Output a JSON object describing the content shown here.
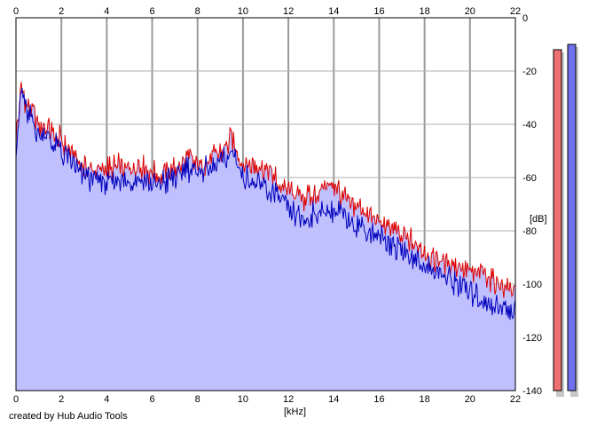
{
  "footer": {
    "credit": "created by Hub Audio Tools"
  },
  "chart_data": {
    "type": "area",
    "title": "",
    "xlabel": "[kHz]",
    "ylabel": "[dB]",
    "x_ticks": [
      "0",
      "2",
      "4",
      "6",
      "8",
      "10",
      "12",
      "14",
      "16",
      "18",
      "20",
      "22"
    ],
    "y_ticks": [
      "0",
      "-20",
      "-40",
      "-60",
      "-80",
      "-100",
      "-120",
      "-140"
    ],
    "xlim": [
      0,
      22
    ],
    "ylim": [
      -140,
      0
    ],
    "grid": true,
    "x_axis_position": "top-and-bottom",
    "y_axis_position": "right",
    "fill_color": "#c0c0ff",
    "series": [
      {
        "color": "#dd0000",
        "x": [
          0,
          0.25,
          0.5,
          1,
          1.5,
          2,
          2.5,
          3,
          3.5,
          4,
          4.5,
          5,
          5.5,
          6,
          6.5,
          7,
          7.5,
          8,
          8.5,
          9,
          9.5,
          10,
          10.5,
          11,
          11.5,
          12,
          12.5,
          13,
          13.5,
          14,
          14.5,
          15,
          15.5,
          16,
          16.5,
          17,
          17.5,
          18,
          18.5,
          19,
          19.5,
          20,
          20.5,
          21,
          21.5,
          22
        ],
        "y": [
          -45,
          -26,
          -33,
          -40,
          -42,
          -46,
          -51,
          -56,
          -57,
          -57,
          -56,
          -57,
          -55,
          -59,
          -58,
          -57,
          -53,
          -55,
          -53,
          -51,
          -46,
          -55,
          -56,
          -57,
          -61,
          -65,
          -68,
          -67,
          -64,
          -63,
          -68,
          -71,
          -74,
          -77,
          -79,
          -82,
          -84,
          -87,
          -91,
          -93,
          -93,
          -96,
          -96,
          -99,
          -101,
          -103
        ]
      },
      {
        "color": "#0000bb",
        "x": [
          0,
          0.25,
          0.5,
          1,
          1.5,
          2,
          2.5,
          3,
          3.5,
          4,
          4.5,
          5,
          5.5,
          6,
          6.5,
          7,
          7.5,
          8,
          8.5,
          9,
          9.5,
          10,
          10.5,
          11,
          11.5,
          12,
          12.5,
          13,
          13.5,
          14,
          14.5,
          15,
          15.5,
          16,
          16.5,
          17,
          17.5,
          18,
          18.5,
          19,
          19.5,
          20,
          20.5,
          21,
          21.5,
          22
        ],
        "y": [
          -47,
          -27,
          -36,
          -43,
          -46,
          -50,
          -55,
          -60,
          -61,
          -62,
          -61,
          -62,
          -60,
          -63,
          -62,
          -60,
          -56,
          -58,
          -57,
          -55,
          -50,
          -59,
          -62,
          -64,
          -67,
          -72,
          -76,
          -75,
          -73,
          -72,
          -75,
          -78,
          -80,
          -83,
          -85,
          -88,
          -91,
          -93,
          -95,
          -98,
          -100,
          -103,
          -106,
          -108,
          -109,
          -111
        ]
      }
    ],
    "level_meters": [
      {
        "color": "#ee7070",
        "value_db": -12
      },
      {
        "color": "#7070ee",
        "value_db": -10
      }
    ]
  }
}
